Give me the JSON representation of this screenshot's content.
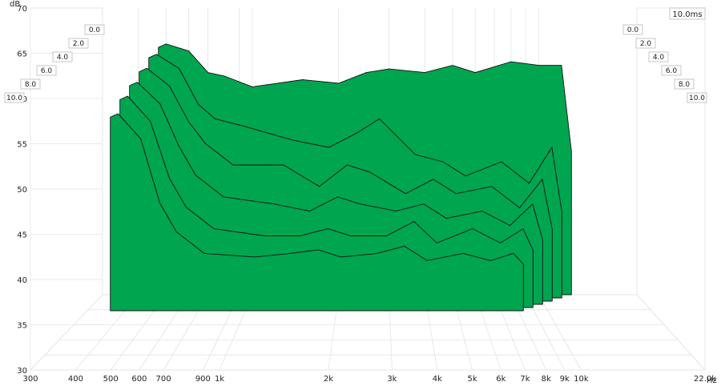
{
  "chart_data": {
    "type": "area",
    "ylabel": "dB",
    "xunit": "Hz",
    "x_ticks": [
      "300",
      "400",
      "500",
      "600",
      "700",
      "900",
      "1k",
      "2k",
      "3k",
      "4k",
      "5k",
      "6k",
      "7k",
      "8k",
      "9k",
      "10k",
      "22.0k"
    ],
    "y_ticks": [
      30,
      35,
      40,
      45,
      50,
      55,
      60,
      65,
      70
    ],
    "ylim": [
      30,
      70
    ],
    "xlim": [
      300,
      22000
    ],
    "x_scale": "log",
    "grid": true,
    "time_unit_label": "10.0ms",
    "time_slices_ms": [
      "0.0",
      "2.0",
      "4.0",
      "6.0",
      "8.0",
      "10.0"
    ],
    "series": [
      {
        "name": "0.0",
        "x": [
          470,
          500,
          600,
          700,
          800,
          1000,
          1500,
          2000,
          2500,
          3000,
          4000,
          5000,
          6000,
          8000,
          10000,
          12000,
          13000
        ],
        "values": [
          64.5,
          65.0,
          64.0,
          61.0,
          60.5,
          59.0,
          60.0,
          59.5,
          61.0,
          61.5,
          61.0,
          62.0,
          61.0,
          62.5,
          62.0,
          62.0,
          50.0
        ]
      },
      {
        "name": "2.0",
        "x": [
          470,
          500,
          600,
          700,
          800,
          1000,
          1500,
          2000,
          2500,
          3000,
          4000,
          5000,
          6000,
          8000,
          10000,
          12000,
          13000
        ],
        "values": [
          63.5,
          64.0,
          62.0,
          57.0,
          55.0,
          54.0,
          52.0,
          51.0,
          53.0,
          55.0,
          50.0,
          49.0,
          47.0,
          49.0,
          46.0,
          51.0,
          42.0
        ]
      },
      {
        "name": "4.0",
        "x": [
          470,
          500,
          600,
          700,
          800,
          1000,
          1500,
          2000,
          2500,
          3000,
          4000,
          5000,
          6000,
          8000,
          10000,
          12000,
          13000
        ],
        "values": [
          62.0,
          62.5,
          60.0,
          55.0,
          52.0,
          49.0,
          49.0,
          46.0,
          49.0,
          48.0,
          45.0,
          47.0,
          45.0,
          46.0,
          43.0,
          47.0,
          40.0
        ]
      },
      {
        "name": "6.0",
        "x": [
          470,
          500,
          600,
          700,
          800,
          1000,
          1500,
          2000,
          2500,
          3000,
          4000,
          5000,
          6000,
          8000,
          10000,
          12000,
          13000
        ],
        "values": [
          60.5,
          61.0,
          58.0,
          52.0,
          48.0,
          45.0,
          44.0,
          43.0,
          45.0,
          44.0,
          43.0,
          44.0,
          42.0,
          43.0,
          41.0,
          44.0,
          39.0
        ]
      },
      {
        "name": "8.0",
        "x": [
          470,
          500,
          600,
          700,
          800,
          1000,
          1500,
          2000,
          2500,
          3000,
          4000,
          5000,
          6000,
          8000,
          10000,
          12000,
          13000
        ],
        "values": [
          59.0,
          59.5,
          56.0,
          48.0,
          44.0,
          41.0,
          40.0,
          40.0,
          41.0,
          40.0,
          40.0,
          42.0,
          39.0,
          41.0,
          39.0,
          41.0,
          38.0
        ]
      },
      {
        "name": "10.0",
        "x": [
          470,
          500,
          600,
          700,
          800,
          1000,
          1500,
          2000,
          2500,
          3000,
          4000,
          5000,
          6000,
          8000,
          10000,
          12000,
          13000
        ],
        "values": [
          57.0,
          57.5,
          54.0,
          45.0,
          41.0,
          38.0,
          37.5,
          38.0,
          38.5,
          37.5,
          38.0,
          39.0,
          37.0,
          38.0,
          37.0,
          38.0,
          36.5
        ]
      }
    ],
    "fill_color": "#00a550",
    "line_color": "#111111"
  }
}
